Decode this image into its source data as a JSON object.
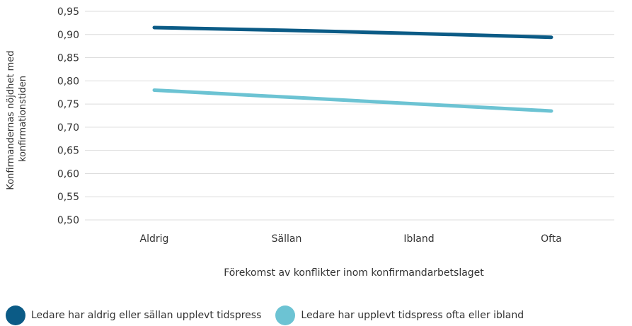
{
  "chart_data": {
    "type": "line",
    "categories": [
      "Aldrig",
      "Sällan",
      "Ibland",
      "Ofta"
    ],
    "series": [
      {
        "name": "Ledare har aldrig eller sällan upplevt tidspress",
        "values": [
          0.915,
          0.909,
          0.902,
          0.894
        ],
        "color": "#0b5b86"
      },
      {
        "name": "Ledare har upplevt tidspress ofta eller ibland",
        "values": [
          0.78,
          0.765,
          0.75,
          0.735
        ],
        "color": "#6cc3d3"
      }
    ],
    "xlabel": "Förekomst av konflikter inom konfirmandarbetslaget",
    "ylabel": [
      "Konfirmandernas nöjdhet med",
      "konfirmationstiden"
    ],
    "ylim": [
      0.5,
      0.95
    ],
    "yticks": [
      "0,50",
      "0,55",
      "0,60",
      "0,65",
      "0,70",
      "0,75",
      "0,80",
      "0,85",
      "0,90",
      "0,95"
    ],
    "grid": true,
    "legend_position": "bottom-left"
  }
}
